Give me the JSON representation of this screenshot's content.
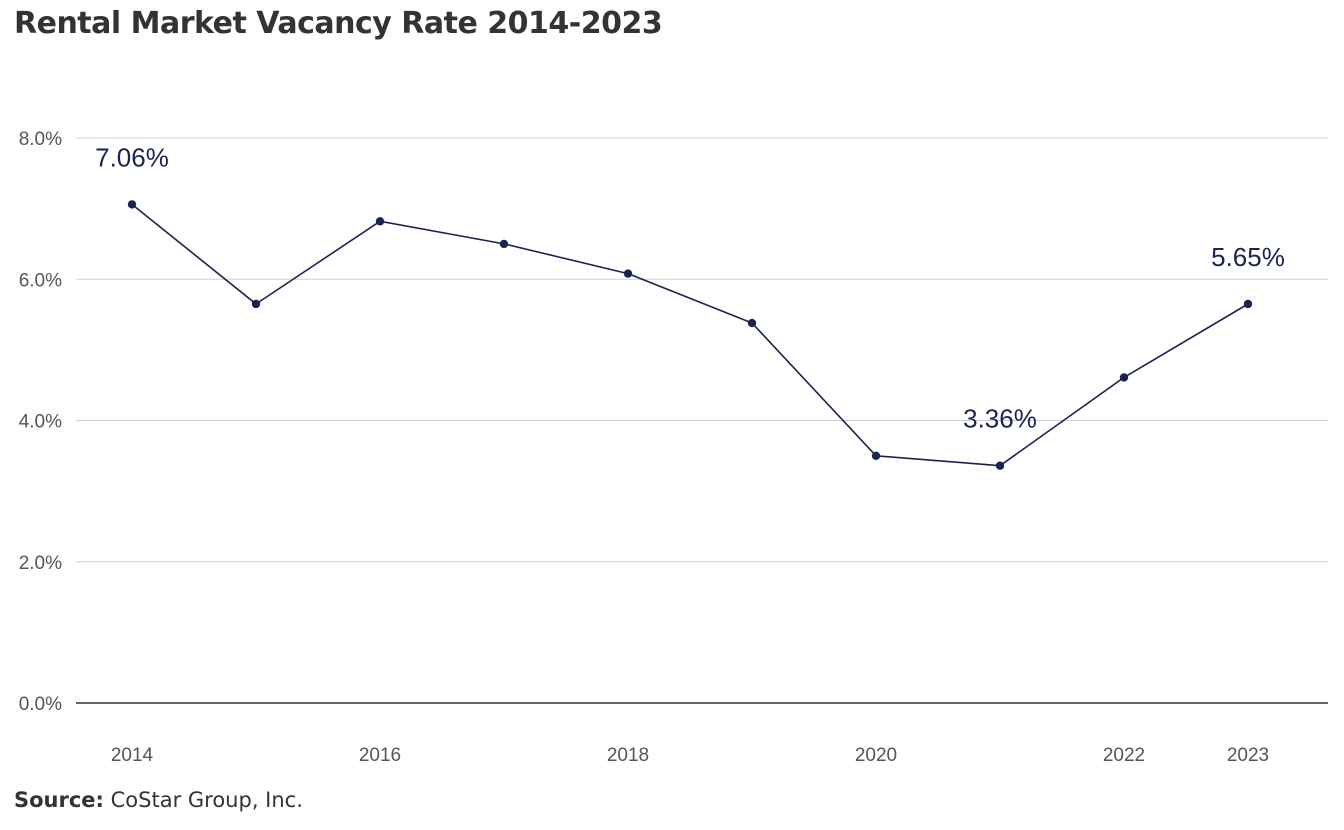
{
  "chart_data": {
    "type": "line",
    "title": "Rental Market Vacancy Rate 2014-2023",
    "xlabel": "",
    "ylabel": "",
    "x": [
      2014,
      2015,
      2016,
      2017,
      2018,
      2019,
      2020,
      2021,
      2022,
      2023
    ],
    "x_tick_labels": [
      "2014",
      "2016",
      "2018",
      "2020",
      "2022",
      "2023"
    ],
    "x_tick_values": [
      2014,
      2016,
      2018,
      2020,
      2022,
      2023
    ],
    "y_tick_labels": [
      "0.0%",
      "2.0%",
      "4.0%",
      "6.0%",
      "8.0%"
    ],
    "y_tick_values": [
      0,
      2,
      4,
      6,
      8
    ],
    "ylim": [
      0,
      8
    ],
    "grid": true,
    "series": [
      {
        "name": "",
        "values": [
          7.06,
          5.65,
          6.82,
          6.5,
          6.08,
          5.38,
          3.5,
          3.36,
          4.61,
          5.65
        ]
      }
    ],
    "annotations": [
      {
        "x": 2014,
        "label": "7.06%"
      },
      {
        "x": 2021,
        "label": "3.36%"
      },
      {
        "x": 2023,
        "label": "5.65%"
      }
    ],
    "colors": {
      "line": "#1b2350",
      "grid": "#d0d0d0",
      "axis": "#333333"
    }
  },
  "source": {
    "label": "Source:",
    "text": "CoStar Group, Inc."
  }
}
